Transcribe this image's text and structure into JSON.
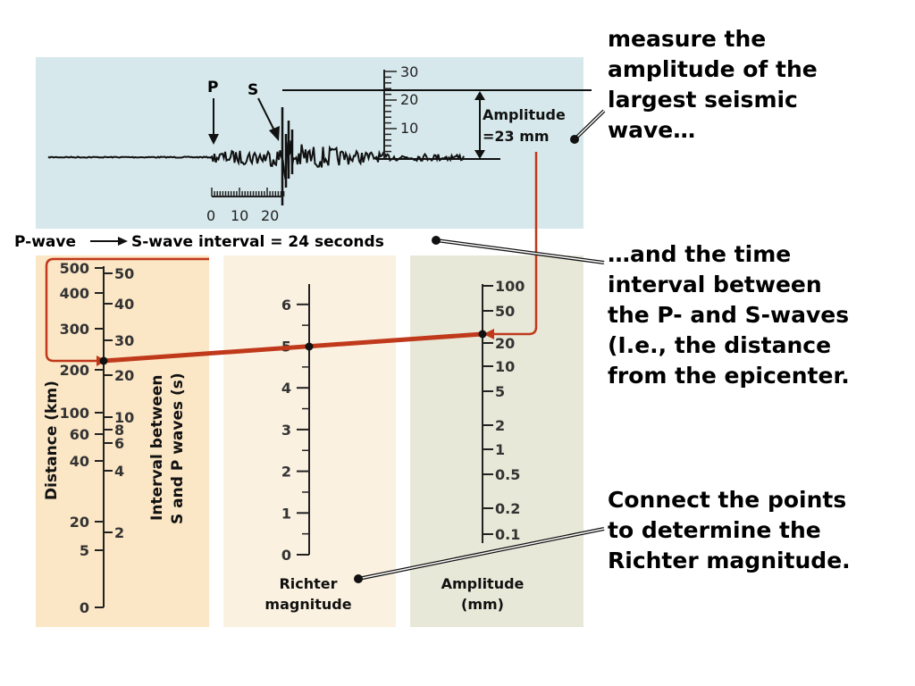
{
  "seismogram": {
    "p_label": "P",
    "s_label": "S",
    "amplitude_line1": "Amplitude",
    "amplitude_line2": "=23 mm",
    "amp_scale": [
      "30",
      "20",
      "10"
    ],
    "time_scale": [
      "0",
      "10",
      "20"
    ]
  },
  "interval_caption": {
    "p_wave": "P-wave",
    "s_wave_text": "S-wave interval = 24 seconds"
  },
  "callouts": {
    "measure": [
      "measure the",
      "amplitude of the",
      "largest seismic",
      "wave…"
    ],
    "time_interval": [
      "…and the time",
      "interval between",
      "the P- and S-waves",
      "(I.e., the distance",
      "from the epicenter."
    ],
    "connect": [
      "Connect the points",
      "to determine the",
      "Richter magnitude."
    ]
  },
  "nomogram": {
    "distance": {
      "axis_label": "Distance (km)",
      "ticks": [
        "500",
        "400",
        "300",
        "200",
        "100",
        "60",
        "40",
        "20",
        "5",
        "0"
      ]
    },
    "interval": {
      "axis_label_line1": "Interval between",
      "axis_label_line2": "S and P waves (s)",
      "ticks": [
        "50",
        "40",
        "30",
        "20",
        "10",
        "8",
        "6",
        "4",
        "2"
      ]
    },
    "magnitude": {
      "label_line1": "Richter",
      "label_line2": "magnitude",
      "ticks": [
        "6",
        "5",
        "4",
        "3",
        "2",
        "1",
        "0"
      ]
    },
    "amplitude": {
      "label_line1": "Amplitude",
      "label_line2": "(mm)",
      "ticks": [
        "100",
        "50",
        "20",
        "10",
        "5",
        "2",
        "1",
        "0.5",
        "0.2",
        "0.1"
      ]
    }
  },
  "colors": {
    "seismo_bg": "#d6e8ec",
    "left_panel": "#fbe6c5",
    "mid_panel": "#fbf1e1",
    "right_panel": "#e8e8d8",
    "connector": "#c0391b"
  }
}
